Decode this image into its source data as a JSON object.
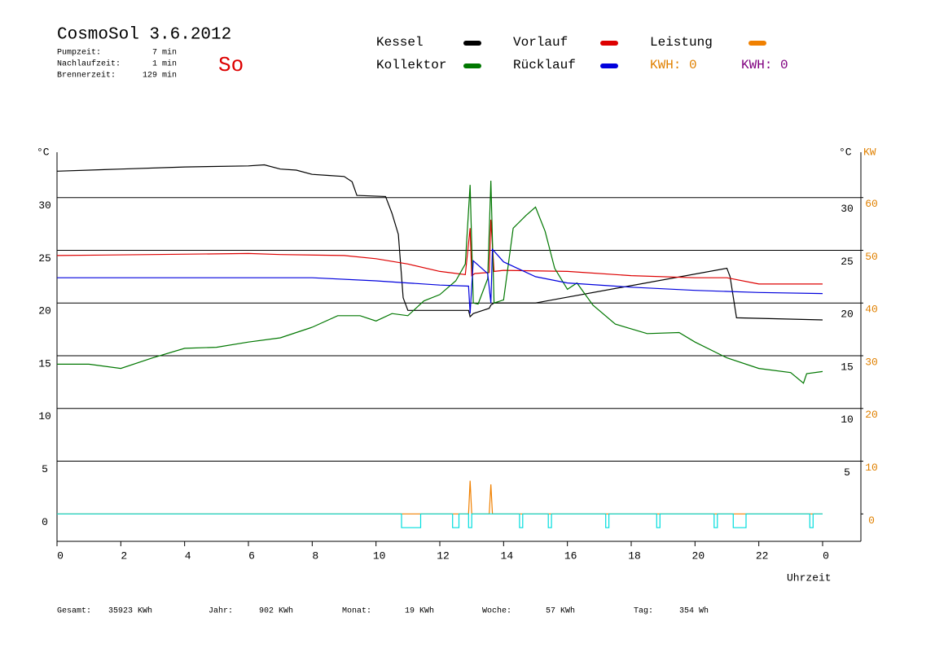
{
  "chart_data": {
    "type": "line",
    "title": "CosmoSol 3.6.2012",
    "day_label": "So",
    "info": [
      {
        "label": "Pumpzeit:",
        "value": "7 min"
      },
      {
        "label": "Nachlaufzeit:",
        "value": "1 min"
      },
      {
        "label": "Brennerzeit:",
        "value": "129 min"
      }
    ],
    "y_axis_label": "°C",
    "y2_axis_label": "°C",
    "y2_unit_label": "KW",
    "x_axis_label": "Uhrzeit",
    "xlim": [
      0,
      25.2
    ],
    "xticks": [
      0,
      2,
      4,
      6,
      8,
      10,
      12,
      14,
      16,
      18,
      20,
      22,
      {
        "value": 24,
        "label": "0"
      }
    ],
    "ylim": [
      -2.6,
      34.3
    ],
    "yticks": [
      0,
      5,
      10,
      15,
      20,
      25,
      30
    ],
    "yticks_right": [
      5,
      10,
      15,
      20,
      25,
      30
    ],
    "y2lim": [
      -5.2,
      68.6
    ],
    "y2ticks": [
      0,
      10,
      20,
      30,
      40,
      50,
      60
    ],
    "y2_color": "#e08000",
    "grid": true,
    "series": [
      {
        "name": "Kessel",
        "color": "#000000",
        "x": [
          0,
          2,
          4,
          6,
          6.5,
          7,
          7.5,
          8,
          8.5,
          9,
          9.25,
          9.4,
          10.3,
          10.5,
          10.7,
          10.85,
          11,
          12.9,
          12.95,
          13.05,
          13.55,
          13.6,
          13.7,
          14.6,
          15,
          21,
          21.1,
          21.3,
          24
        ],
        "values": [
          32.5,
          32.7,
          32.9,
          33.0,
          33.1,
          32.7,
          32.6,
          32.2,
          32.1,
          32.0,
          31.5,
          30.2,
          30.1,
          28.5,
          26.5,
          20.5,
          19.3,
          19.3,
          18.7,
          19.0,
          19.5,
          19.8,
          20.0,
          20.0,
          20.0,
          23.3,
          22.5,
          18.6,
          18.4
        ]
      },
      {
        "name": "Vorlauf",
        "color": "#dd0000",
        "x": [
          0,
          3,
          6,
          7,
          9,
          10,
          11,
          12,
          12.8,
          12.95,
          13.0,
          13.1,
          13.55,
          13.6,
          13.7,
          14,
          16,
          18,
          20,
          21,
          22,
          24
        ],
        "values": [
          24.5,
          24.6,
          24.7,
          24.6,
          24.5,
          24.2,
          23.7,
          23.0,
          22.7,
          27.1,
          22.6,
          22.8,
          22.9,
          27.9,
          23.0,
          23.1,
          23.0,
          22.6,
          22.4,
          22.4,
          21.8,
          21.8
        ]
      },
      {
        "name": "Leistung",
        "color": "#f08000",
        "axis": "y2",
        "x": [
          0,
          12.9,
          12.95,
          13.0,
          13.55,
          13.6,
          13.65,
          24
        ],
        "values": [
          0,
          0,
          6.3,
          0,
          0,
          5.6,
          0,
          0
        ]
      },
      {
        "name": "Kollektor",
        "color": "#007700",
        "x": [
          0,
          1,
          2,
          3,
          4,
          5,
          6,
          7,
          8,
          8.8,
          9.5,
          10,
          10.5,
          11,
          11.5,
          12,
          12.5,
          12.8,
          12.95,
          13.05,
          13.2,
          13.5,
          13.6,
          13.7,
          14,
          14.3,
          14.7,
          15,
          15.3,
          15.6,
          16,
          16.3,
          16.8,
          17.5,
          18.5,
          19.5,
          20,
          21,
          22,
          23,
          23.4,
          23.5,
          24
        ],
        "values": [
          14.2,
          14.2,
          13.8,
          14.8,
          15.7,
          15.8,
          16.3,
          16.7,
          17.7,
          18.8,
          18.8,
          18.3,
          19.0,
          18.8,
          20.2,
          20.8,
          22.1,
          23.7,
          31.2,
          20.0,
          19.9,
          22.3,
          31.6,
          20.0,
          20.3,
          27.1,
          28.3,
          29.1,
          26.8,
          23.3,
          21.3,
          21.9,
          19.8,
          18.0,
          17.1,
          17.2,
          16.3,
          14.8,
          13.8,
          13.4,
          12.4,
          13.3,
          13.5
        ]
      },
      {
        "name": "Rücklauf",
        "color": "#0000dd",
        "x": [
          0,
          8,
          10,
          11,
          12,
          12.9,
          12.95,
          13.05,
          13.5,
          13.6,
          13.65,
          14,
          15,
          16,
          18,
          20,
          22,
          24
        ],
        "values": [
          22.4,
          22.4,
          22.1,
          21.9,
          21.7,
          21.6,
          19.0,
          24.0,
          22.8,
          20.0,
          25.1,
          23.9,
          22.5,
          21.9,
          21.5,
          21.2,
          21.0,
          20.9
        ]
      },
      {
        "color": "#00dddd",
        "x": [
          0,
          10.8,
          10.8,
          11.4,
          11.4,
          12.4,
          12.4,
          12.6,
          12.6,
          12.9,
          12.9,
          13.0,
          13.0,
          14.5,
          14.5,
          14.6,
          14.6,
          15.4,
          15.4,
          15.5,
          15.5,
          17.2,
          17.2,
          17.3,
          17.3,
          18.8,
          18.8,
          18.9,
          18.9,
          20.6,
          20.6,
          20.7,
          20.7,
          21.2,
          21.2,
          21.6,
          21.6,
          23.6,
          23.6,
          23.7,
          23.7,
          24
        ],
        "values": [
          0,
          0,
          -1.3,
          -1.3,
          0,
          0,
          -1.3,
          -1.3,
          0,
          0,
          -1.3,
          -1.3,
          0,
          0,
          -1.3,
          -1.3,
          0,
          0,
          -1.3,
          -1.3,
          0,
          0,
          -1.3,
          -1.3,
          0,
          0,
          -1.3,
          -1.3,
          0,
          0,
          -1.3,
          -1.3,
          0,
          0,
          -1.3,
          -1.3,
          0,
          0,
          -1.3,
          -1.3,
          0,
          0
        ]
      }
    ],
    "kwh_labels": [
      {
        "text": "KWH: 0",
        "color": "#e08000"
      },
      {
        "text": "KWH: 0",
        "color": "#800080"
      }
    ],
    "stats": [
      {
        "label": "Gesamt:",
        "value": "35923 KWh"
      },
      {
        "label": "Jahr:",
        "value": "902 KWh"
      },
      {
        "label": "Monat:",
        "value": "19 KWh"
      },
      {
        "label": "Woche:",
        "value": "57 KWh"
      },
      {
        "label": "Tag:",
        "value": "354 Wh"
      }
    ]
  }
}
